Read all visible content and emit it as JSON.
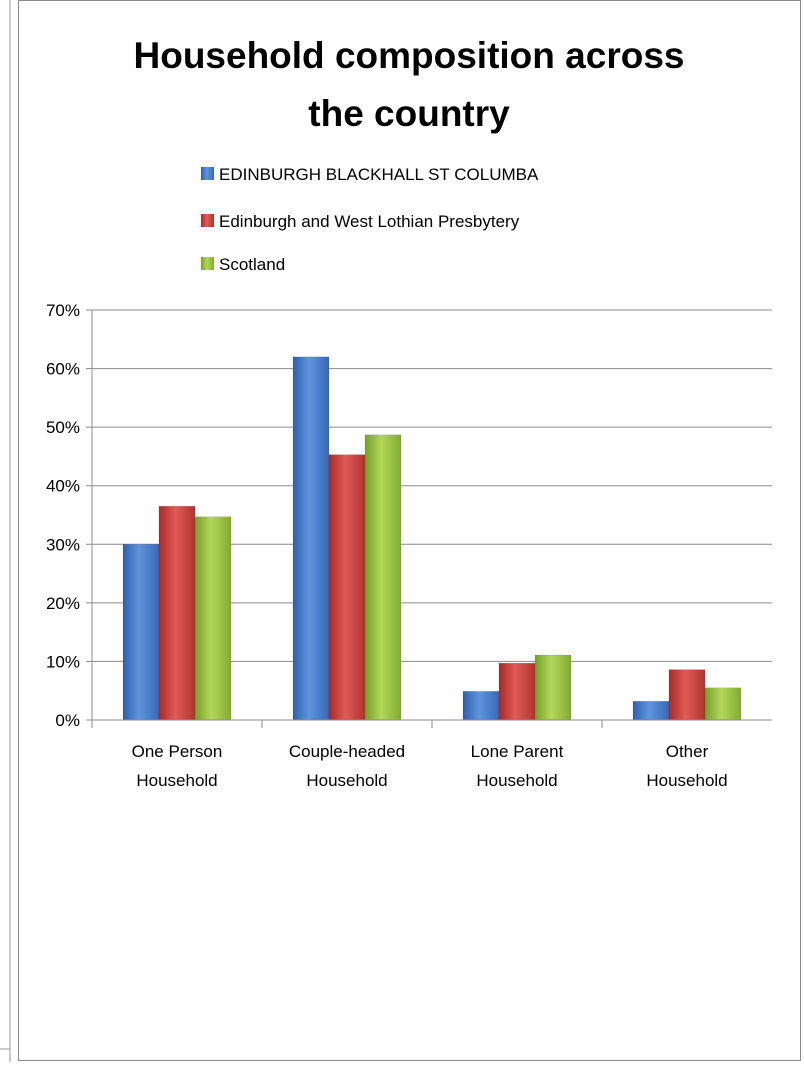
{
  "chart_data": {
    "type": "bar",
    "title_lines": [
      "Household composition across",
      "the country"
    ],
    "categories": [
      [
        "One Person",
        "Household"
      ],
      [
        "Couple-headed",
        "Household"
      ],
      [
        "Lone Parent",
        "Household"
      ],
      [
        "Other",
        "Household"
      ]
    ],
    "series": [
      {
        "name": "EDINBURGH BLACKHALL ST COLUMBA",
        "color": "#4a7fcc",
        "values": [
          30.0,
          62.0,
          4.9,
          3.2
        ]
      },
      {
        "name": "Edinburgh and West Lothian Presbytery",
        "color": "#cc3f3c",
        "values": [
          36.5,
          45.3,
          9.7,
          8.6
        ]
      },
      {
        "name": "Scotland",
        "color": "#97c23e",
        "values": [
          34.7,
          48.7,
          11.1,
          5.5
        ]
      }
    ],
    "ylim": [
      0,
      70
    ],
    "yticks": [
      "0%",
      "10%",
      "20%",
      "30%",
      "40%",
      "50%",
      "60%",
      "70%"
    ],
    "grid": true,
    "legend_position": "top"
  }
}
